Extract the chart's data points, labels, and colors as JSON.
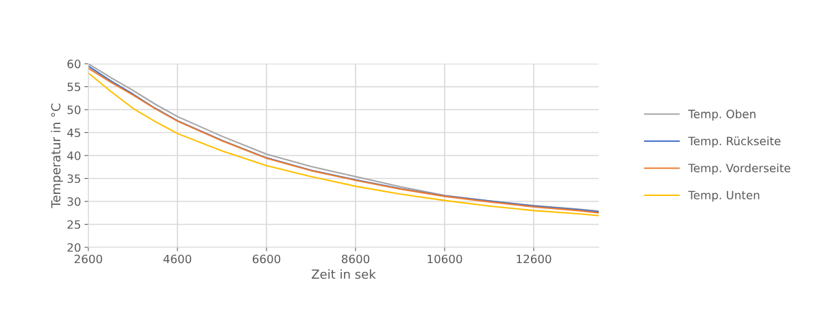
{
  "chart_data": {
    "type": "line",
    "xlabel": "Zeit in sek",
    "ylabel": "Temperatur in °C",
    "x": [
      2600,
      3100,
      3600,
      4100,
      4600,
      5600,
      6600,
      7600,
      8600,
      9600,
      10600,
      11600,
      12600,
      13600,
      14060
    ],
    "series": [
      {
        "name": "Temp. Oben",
        "color": "#a5a5a5",
        "values": [
          60,
          57,
          54.2,
          51.2,
          48.5,
          44.2,
          40.3,
          37.6,
          35.4,
          33.2,
          31.3,
          30.1,
          29.1,
          28.3,
          27.9
        ]
      },
      {
        "name": "Temp. Rückseite",
        "color": "#4472c4",
        "values": [
          59.5,
          56.3,
          53.4,
          50.3,
          47.6,
          43.3,
          39.5,
          36.8,
          34.7,
          32.8,
          31.2,
          30.1,
          29,
          28.2,
          27.7
        ]
      },
      {
        "name": "Temp. Vorderseite",
        "color": "#ed7d31",
        "values": [
          59,
          56,
          53.2,
          50.2,
          47.5,
          43.2,
          39.4,
          36.7,
          34.6,
          32.7,
          31.1,
          29.9,
          28.8,
          28,
          27.5
        ]
      },
      {
        "name": "Temp. Unten",
        "color": "#ffc000",
        "values": [
          58,
          54,
          50.3,
          47.4,
          44.8,
          41,
          37.8,
          35.4,
          33.3,
          31.6,
          30.2,
          29,
          28,
          27.3,
          26.9
        ]
      }
    ],
    "xlim": [
      2600,
      14060
    ],
    "xticks": [
      2600,
      4600,
      6600,
      8600,
      10600,
      12600
    ],
    "ylim": [
      20,
      60
    ],
    "yticks": [
      20,
      25,
      30,
      35,
      40,
      45,
      50,
      55,
      60
    ],
    "grid": true,
    "legend": "right",
    "marker": "none",
    "line_style": "solid"
  }
}
